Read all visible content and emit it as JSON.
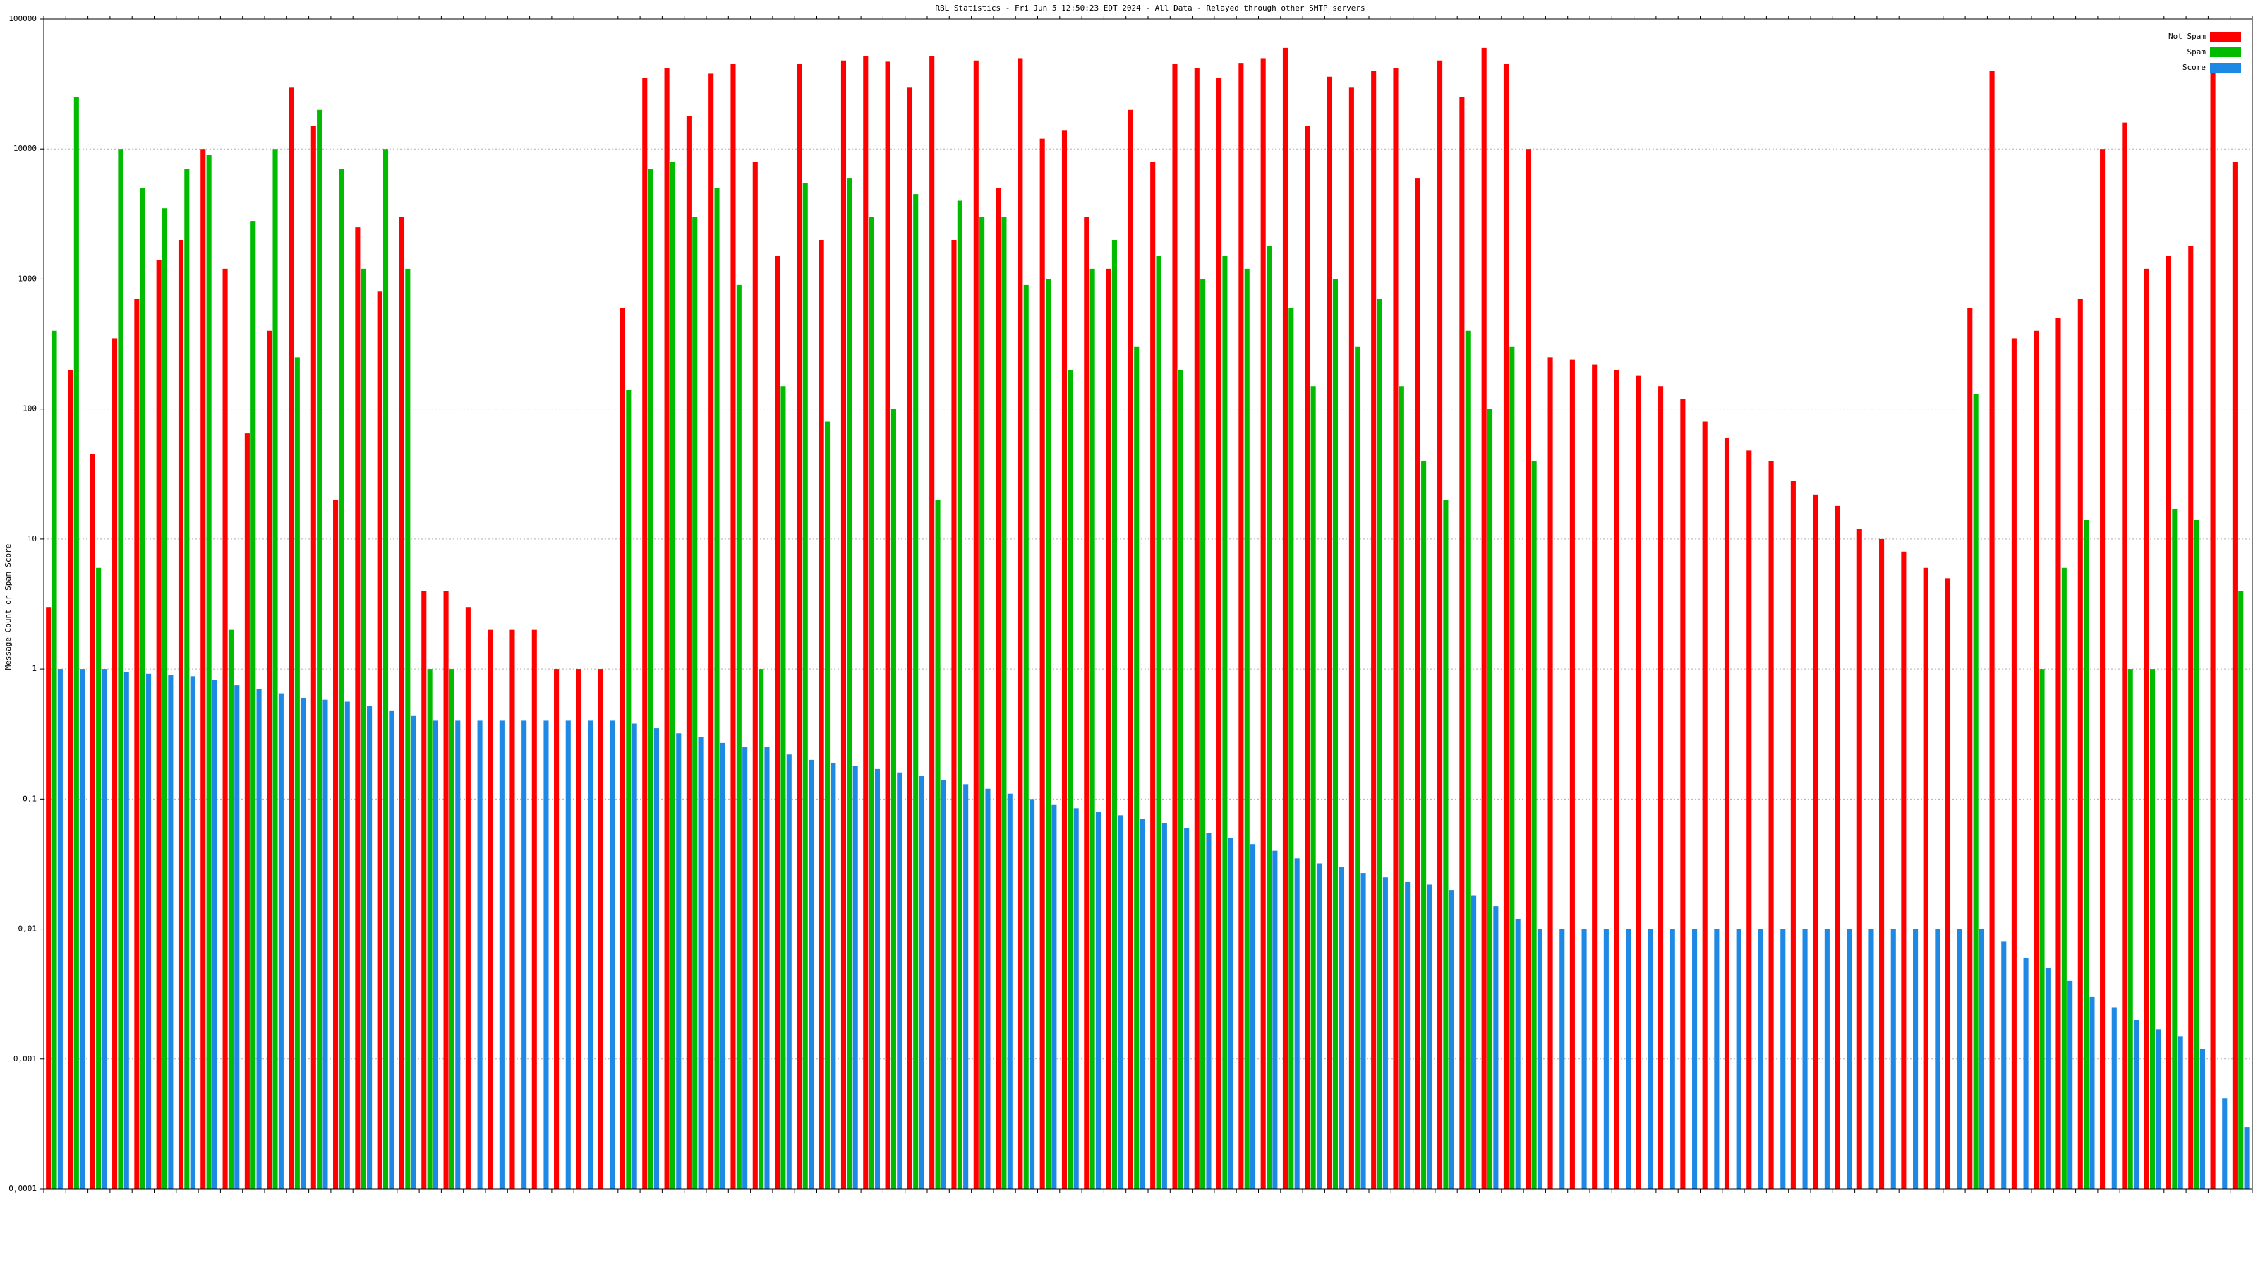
{
  "chart_data": {
    "type": "bar",
    "title": "RBL Statistics - Fri Jun  5 12:50:23 EDT 2024 - All Data - Relayed through other SMTP servers",
    "y_label": "Message Count or Spam Score",
    "log_scale": true,
    "grid": true,
    "legend": "top-right",
    "ylim": [
      0.0001,
      100000
    ],
    "yticks": [
      {
        "value": 0.0001,
        "label": "0,0001"
      },
      {
        "value": 0.001,
        "label": "0,001"
      },
      {
        "value": 0.01,
        "label": "0,01"
      },
      {
        "value": 0.1,
        "label": "0,1"
      },
      1,
      10,
      100,
      1000,
      10000,
      100000
    ],
    "categories": [
      null,
      null,
      null,
      null,
      null,
      null,
      null,
      null,
      null,
      null,
      null,
      null,
      null,
      null,
      null,
      null,
      null,
      null,
      null,
      null,
      null,
      null,
      null,
      null,
      null,
      null,
      null,
      null,
      null,
      null,
      null,
      null,
      null,
      null,
      null,
      null,
      null,
      null,
      null,
      null,
      null,
      null,
      null,
      null,
      null,
      null,
      null,
      null,
      null,
      null,
      null,
      null,
      null,
      null,
      null,
      null,
      null,
      null,
      null,
      null,
      null,
      null,
      null,
      null,
      null,
      null,
      null,
      null,
      null,
      null,
      null,
      null,
      null,
      null,
      null,
      null,
      null,
      null,
      null,
      null,
      null,
      null,
      null,
      null,
      null,
      null,
      null,
      null,
      null,
      null,
      null,
      null,
      null,
      null,
      null,
      null,
      null,
      null,
      null,
      null
    ],
    "series": [
      {
        "name": "Not Spam",
        "color": "#ff0000",
        "values": [
          3,
          200,
          45,
          350,
          700,
          1400,
          2000,
          10000,
          1200,
          65,
          400,
          30000,
          15000,
          20,
          2500,
          800,
          3000,
          4,
          4,
          3,
          2,
          2,
          2,
          1,
          1,
          1,
          600,
          35000,
          42000,
          18000,
          38000,
          45000,
          8000,
          1500,
          45000,
          2000,
          48000,
          52000,
          47000,
          30000,
          52000,
          2000,
          48000,
          5000,
          50000,
          12000,
          14000,
          3000,
          1200,
          20000,
          8000,
          45000,
          42000,
          35000,
          46000,
          50000,
          60000,
          15000,
          36000,
          30000,
          40000,
          42000,
          6000,
          48000,
          25000,
          60000,
          45000,
          10000,
          250,
          240,
          220,
          200,
          180,
          150,
          120,
          80,
          60,
          48,
          40,
          28,
          22,
          18,
          12,
          10,
          8,
          6,
          5,
          600,
          40000,
          350,
          400,
          500,
          700,
          10000,
          16000,
          1200,
          1500,
          1800,
          40000,
          8000
        ]
      },
      {
        "name": "Spam",
        "color": "#00bb00",
        "values": [
          400,
          25000,
          6,
          10000,
          5000,
          3500,
          7000,
          9000,
          2,
          2800,
          10000,
          250,
          20000,
          7000,
          1200,
          10000,
          1200,
          1,
          1,
          null,
          null,
          null,
          null,
          null,
          null,
          null,
          140,
          7000,
          8000,
          3000,
          5000,
          900,
          1,
          150,
          5500,
          80,
          6000,
          3000,
          100,
          4500,
          20,
          4000,
          3000,
          3000,
          900,
          1000,
          200,
          1200,
          2000,
          300,
          1500,
          200,
          1000,
          1500,
          1200,
          1800,
          600,
          150,
          1000,
          300,
          700,
          150,
          40,
          20,
          400,
          100,
          300,
          40,
          null,
          null,
          null,
          null,
          null,
          null,
          null,
          null,
          null,
          null,
          null,
          null,
          null,
          null,
          null,
          null,
          null,
          null,
          null,
          130,
          null,
          null,
          1,
          6,
          14,
          null,
          1,
          1,
          17,
          14,
          null,
          4
        ]
      },
      {
        "name": "Score",
        "color": "#1e88e5",
        "values": [
          1,
          1,
          1,
          0.95,
          0.92,
          0.9,
          0.88,
          0.82,
          0.75,
          0.7,
          0.65,
          0.6,
          0.58,
          0.56,
          0.52,
          0.48,
          0.44,
          0.4,
          0.4,
          0.4,
          0.4,
          0.4,
          0.4,
          0.4,
          0.4,
          0.4,
          0.38,
          0.35,
          0.32,
          0.3,
          0.27,
          0.25,
          0.25,
          0.22,
          0.2,
          0.19,
          0.18,
          0.17,
          0.16,
          0.15,
          0.14,
          0.13,
          0.12,
          0.11,
          0.1,
          0.09,
          0.085,
          0.08,
          0.075,
          0.07,
          0.065,
          0.06,
          0.055,
          0.05,
          0.045,
          0.04,
          0.035,
          0.032,
          0.03,
          0.027,
          0.025,
          0.023,
          0.022,
          0.02,
          0.018,
          0.015,
          0.012,
          0.01,
          0.01,
          0.01,
          0.01,
          0.01,
          0.01,
          0.01,
          0.01,
          0.01,
          0.01,
          0.01,
          0.01,
          0.01,
          0.01,
          0.01,
          0.01,
          0.01,
          0.01,
          0.01,
          0.01,
          0.01,
          0.008,
          0.006,
          0.005,
          0.004,
          0.003,
          0.0025,
          0.002,
          0.0017,
          0.0015,
          0.0012,
          0.0005,
          0.0003
        ]
      }
    ]
  }
}
